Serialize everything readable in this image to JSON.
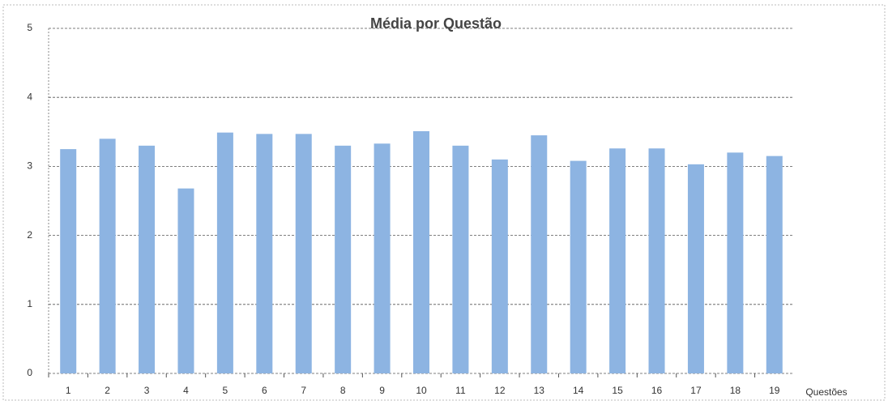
{
  "chart_data": {
    "type": "bar",
    "title": "Média por Questão",
    "x_label": "Questões",
    "categories": [
      "1",
      "2",
      "3",
      "4",
      "5",
      "6",
      "7",
      "8",
      "9",
      "10",
      "11",
      "12",
      "13",
      "14",
      "15",
      "16",
      "17",
      "18",
      "19"
    ],
    "values": [
      3.25,
      3.4,
      3.3,
      2.68,
      3.49,
      3.47,
      3.47,
      3.3,
      3.33,
      3.51,
      3.3,
      3.1,
      3.45,
      3.08,
      3.26,
      3.26,
      3.03,
      3.2,
      3.15
    ],
    "color": "#8db4e2",
    "ylim": [
      0,
      5
    ],
    "yticks": [
      0,
      1,
      2,
      3,
      4,
      5
    ],
    "grid": true
  }
}
